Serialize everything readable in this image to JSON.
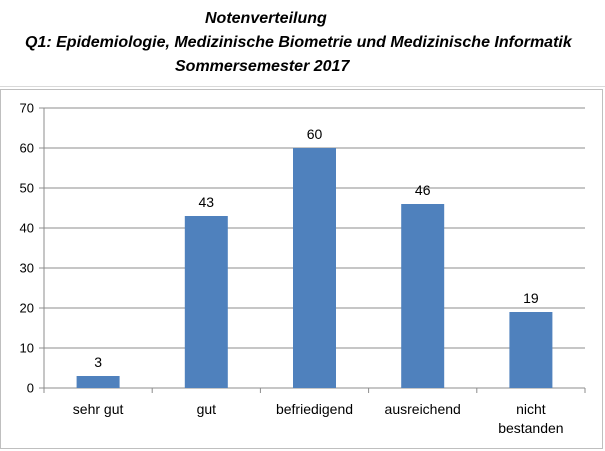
{
  "title": {
    "line1": "Notenverteilung",
    "line2": "Q1: Epidemiologie, Medizinische Biometrie und Medizinische Informatik",
    "line3": "Sommersemester 2017"
  },
  "chart_data": {
    "type": "bar",
    "title": "Notenverteilung",
    "subtitle": "Q1: Epidemiologie, Medizinische Biometrie und Medizinische Informatik — Sommersemester 2017",
    "categories": [
      "sehr gut",
      "gut",
      "befriedigend",
      "ausreichend",
      "nicht bestanden"
    ],
    "category_lines": [
      [
        "sehr gut"
      ],
      [
        "gut"
      ],
      [
        "befriedigend"
      ],
      [
        "ausreichend"
      ],
      [
        "nicht",
        "bestanden"
      ]
    ],
    "values": [
      3,
      43,
      60,
      46,
      19
    ],
    "data_labels": [
      "3",
      "43",
      "60",
      "46",
      "19"
    ],
    "ylim": [
      0,
      70
    ],
    "yticks": [
      0,
      10,
      20,
      30,
      40,
      50,
      60,
      70
    ],
    "xlabel": "",
    "ylabel": "",
    "grid": true,
    "legend": "none",
    "bar_color": "#4f81bd",
    "grid_color": "#8c8c8c"
  }
}
